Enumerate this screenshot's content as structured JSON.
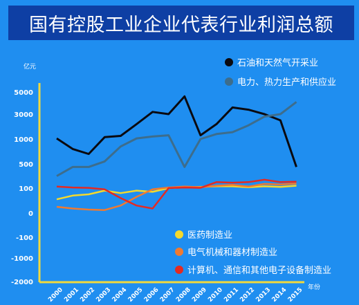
{
  "chart_data": {
    "type": "line",
    "title": "国有控股工业企业代表行业利润总额",
    "ylabel": "亿元",
    "xlabel": "年份",
    "categories": [
      "2000",
      "2001",
      "2002",
      "2003",
      "2004",
      "2005",
      "2006",
      "2007",
      "2008",
      "2009",
      "2010",
      "2011",
      "2012",
      "2013",
      "2014",
      "2015"
    ],
    "y_ticks": [
      "5000",
      "3000",
      "1000",
      "500",
      "100",
      "0",
      "-100",
      "-1000",
      "-2000"
    ],
    "series": [
      {
        "name": "石油和天然气开采业",
        "color": "#0a0a10",
        "values": [
          1050,
          800,
          700,
          1150,
          1250,
          2200,
          3200,
          3000,
          4600,
          1300,
          2200,
          3600,
          3400,
          3000,
          2500,
          450
        ]
      },
      {
        "name": "电力、热力生产和供应业",
        "color": "#3d6d8c",
        "values": [
          300,
          450,
          450,
          550,
          850,
          1050,
          1200,
          1300,
          450,
          1000,
          1400,
          1550,
          2100,
          2800,
          3000,
          4100
        ]
      },
      {
        "name": "医药制造业",
        "color": "#f5d92c",
        "values": [
          55,
          70,
          75,
          90,
          80,
          90,
          85,
          100,
          115,
          120,
          130,
          130,
          115,
          130,
          120,
          140
        ]
      },
      {
        "name": "电气机械和器材制造业",
        "color": "#f07a30",
        "values": [
          25,
          18,
          14,
          12,
          30,
          65,
          95,
          110,
          125,
          115,
          140,
          155,
          125,
          170,
          160,
          175
        ]
      },
      {
        "name": "计算机、通信和其他电子设备制造业",
        "color": "#e42a22",
        "values": [
          125,
          110,
          105,
          95,
          60,
          30,
          18,
          100,
          110,
          105,
          200,
          190,
          200,
          240,
          200,
          205
        ]
      }
    ]
  }
}
